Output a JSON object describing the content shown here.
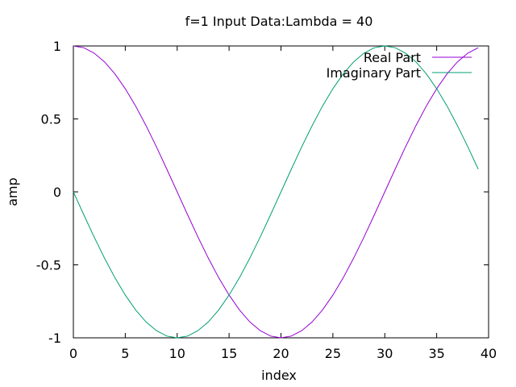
{
  "chart_data": {
    "type": "line",
    "title": "f=1 Input Data:Lambda = 40",
    "xlabel": "index",
    "ylabel": "amp",
    "xlim": [
      0,
      40
    ],
    "ylim": [
      -1,
      1
    ],
    "grid": false,
    "legend_position": "top-right",
    "x_ticks": [
      0,
      5,
      10,
      15,
      20,
      25,
      30,
      35,
      40
    ],
    "y_ticks": [
      -1,
      -0.5,
      0,
      0.5,
      1
    ],
    "x_tick_labels": [
      "0",
      "5",
      "10",
      "15",
      "20",
      "25",
      "30",
      "35",
      "40"
    ],
    "y_tick_labels": [
      "-1",
      "-0.5",
      "0",
      "0.5",
      "1"
    ],
    "x": [
      0,
      1,
      2,
      3,
      4,
      5,
      6,
      7,
      8,
      9,
      10,
      11,
      12,
      13,
      14,
      15,
      16,
      17,
      18,
      19,
      20,
      21,
      22,
      23,
      24,
      25,
      26,
      27,
      28,
      29,
      30,
      31,
      32,
      33,
      34,
      35,
      36,
      37,
      38,
      39
    ],
    "series": [
      {
        "name": "Real Part",
        "color": "#9400D3",
        "values": [
          1.0,
          0.988,
          0.951,
          0.891,
          0.809,
          0.707,
          0.588,
          0.454,
          0.309,
          0.156,
          0.0,
          -0.156,
          -0.309,
          -0.454,
          -0.588,
          -0.707,
          -0.809,
          -0.891,
          -0.951,
          -0.988,
          -1.0,
          -0.988,
          -0.951,
          -0.891,
          -0.809,
          -0.707,
          -0.588,
          -0.454,
          -0.309,
          -0.156,
          0.0,
          0.156,
          0.309,
          0.454,
          0.588,
          0.707,
          0.809,
          0.891,
          0.951,
          0.988
        ]
      },
      {
        "name": "Imaginary Part",
        "color": "#009E73",
        "values": [
          0.0,
          -0.156,
          -0.309,
          -0.454,
          -0.588,
          -0.707,
          -0.809,
          -0.891,
          -0.951,
          -0.988,
          -1.0,
          -0.988,
          -0.951,
          -0.891,
          -0.809,
          -0.707,
          -0.588,
          -0.454,
          -0.309,
          -0.156,
          0.0,
          0.156,
          0.309,
          0.454,
          0.588,
          0.707,
          0.809,
          0.891,
          0.951,
          0.988,
          1.0,
          0.988,
          0.951,
          0.891,
          0.809,
          0.707,
          0.588,
          0.454,
          0.309,
          0.156
        ]
      }
    ]
  }
}
